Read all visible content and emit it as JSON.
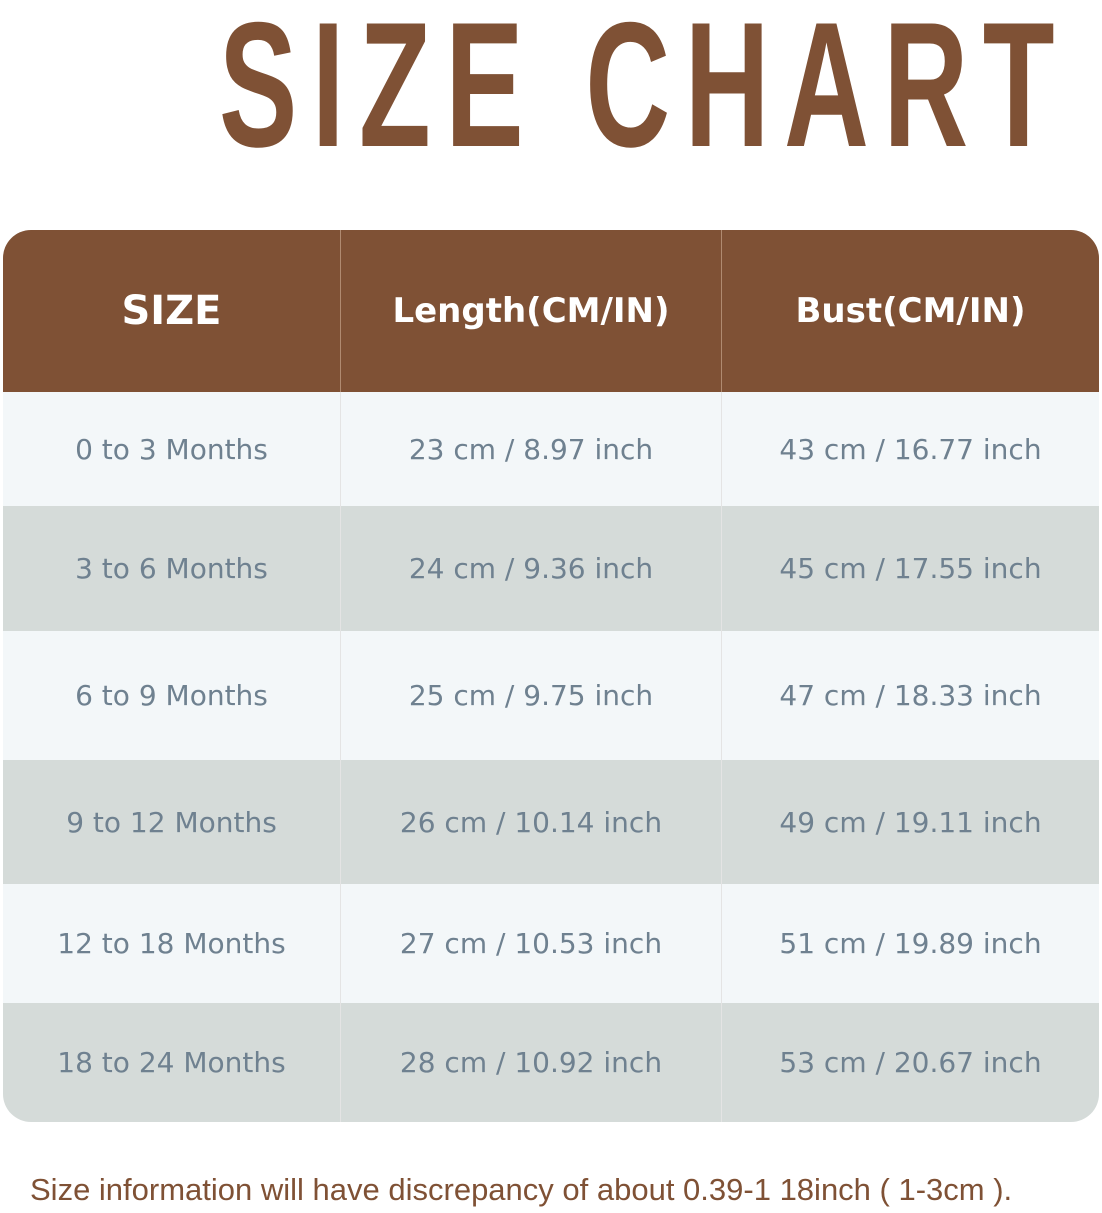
{
  "title": "SIZE CHART",
  "headers": [
    "SIZE",
    "Length(CM/IN)",
    "Bust(CM/IN)"
  ],
  "rows": [
    [
      "0 to 3 Months",
      "23 cm / 8.97 inch",
      "43 cm / 16.77 inch"
    ],
    [
      "3 to 6 Months",
      "24 cm / 9.36 inch",
      "45 cm / 17.55 inch"
    ],
    [
      "6 to 9 Months",
      "25 cm / 9.75 inch",
      "47 cm / 18.33 inch"
    ],
    [
      "9 to 12 Months",
      "26 cm / 10.14 inch",
      "49 cm / 19.11 inch"
    ],
    [
      "12 to 18 Months",
      "27 cm / 10.53 inch",
      "51 cm / 19.89 inch"
    ],
    [
      "18 to 24 Months",
      "28 cm / 10.92 inch",
      "53 cm / 20.67 inch"
    ]
  ],
  "note": "Size information will have discrepancy of about 0.39-1 18inch ( 1-3cm ).",
  "colors": {
    "brand": "#7f5135",
    "row_light": "#f3f7f9",
    "row_gray": "#d5dbd9",
    "text": "#6f8190"
  }
}
